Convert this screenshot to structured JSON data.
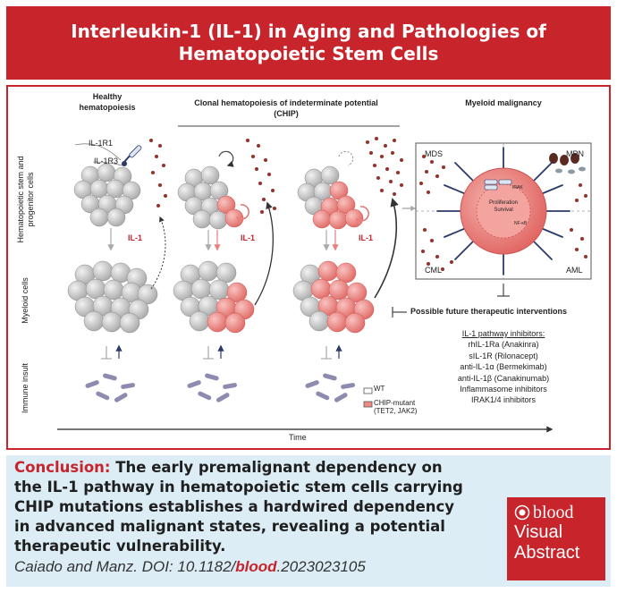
{
  "header": {
    "title_line1": "Interleukin-1 (IL-1) in Aging and Pathologies of",
    "title_line2": "Hematopoietic Stem Cells"
  },
  "columns": {
    "healthy_line1": "Healthy",
    "healthy_line2": "hematopoiesis",
    "chip_line1": "Clonal hematopoiesis of indeterminate potential",
    "chip_line2": "(CHIP)",
    "malignancy": "Myeloid malignancy"
  },
  "rows": {
    "hspc_line1": "Hematopoietic stem and",
    "hspc_line2": "progenitor cells",
    "myeloid": "Myeloid cells",
    "immune": "Immune insult"
  },
  "receptors": {
    "il1r1": "IL-1R1",
    "il1r3": "IL-1R3"
  },
  "il1_label": "IL-1",
  "malignancy_quadrants": {
    "mds": "MDS",
    "mpn": "MPN",
    "cml": "CML",
    "aml": "AML"
  },
  "core_cell": {
    "line1": "Proliferation",
    "line2": "Survival",
    "irak": "IRAK",
    "nfkb": "NF-κB"
  },
  "legend": {
    "wt": "WT",
    "chip_line1": "CHIP-mutant",
    "chip_line2": "(TET2, JAK2)"
  },
  "axis": {
    "time": "Time"
  },
  "therapeutics": {
    "title": "Possible future therapeutic interventions",
    "inhibitors_title": "IL-1 pathway inhibitors:",
    "inhibitors": [
      "rhIL-1Ra (Anakinra)",
      "sIL-1R (Rilonacept)",
      "anti-IL-1α (Bermekimab)",
      "anti-IL-1β (Canakinumab)",
      "Inflammasome inhibitors",
      "IRAK1/4 inhibitors"
    ]
  },
  "conclusion": {
    "label": "Conclusion:",
    "text": "The early premalignant dependency on the IL-1 pathway in hematopoietic stem cells carrying CHIP mutations establishes a hardwired dependency in advanced malignant states, revealing a potential therapeutic vulnerability."
  },
  "citation": {
    "prefix": "Caiado and Manz. DOI: 10.1182/",
    "journal": "blood",
    "suffix": ".2023023105"
  },
  "badge": {
    "brand": "blood",
    "line1": "Visual",
    "line2": "Abstract"
  },
  "colors": {
    "brand_red": "#c8242b",
    "footer_bg": "#dcedf6",
    "cell_gray": "#c9c9c9",
    "mutant_pink": "#ef8a86",
    "navy": "#2b3a6b",
    "dot_red": "#9b2d26"
  }
}
